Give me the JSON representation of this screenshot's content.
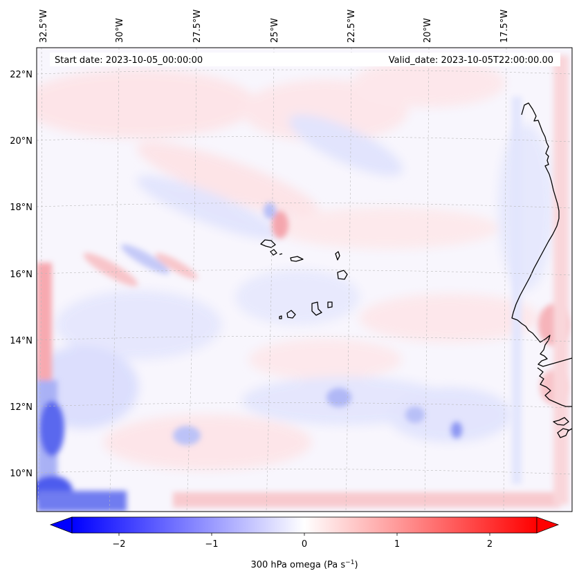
{
  "map": {
    "header": {
      "start_date": "Start date: 2023-10-05_00:00:00",
      "valid_date": "Valid_date: 2023-10-05T22:00:00.00"
    },
    "lon_labels": [
      "32.5°W",
      "30°W",
      "27.5°W",
      "25°W",
      "22.5°W",
      "20°W",
      "17.5°W"
    ],
    "lat_labels": [
      "22°N",
      "20°N",
      "18°N",
      "16°N",
      "14°N",
      "12°N",
      "10°N"
    ],
    "colorbar": {
      "label_prefix": "300 hPa omega (Pa s",
      "label_exp": "−1",
      "label_suffix": ")",
      "ticks": [
        "−2",
        "−1",
        "0",
        "1",
        "2"
      ],
      "min": -2.6,
      "max": 2.6,
      "cmap": "bwr",
      "extend": "both",
      "colors": {
        "negative": "#0000ff",
        "zero": "#ffffff",
        "positive": "#ff0000"
      }
    },
    "grid": true,
    "coastline_color": "#000000"
  }
}
